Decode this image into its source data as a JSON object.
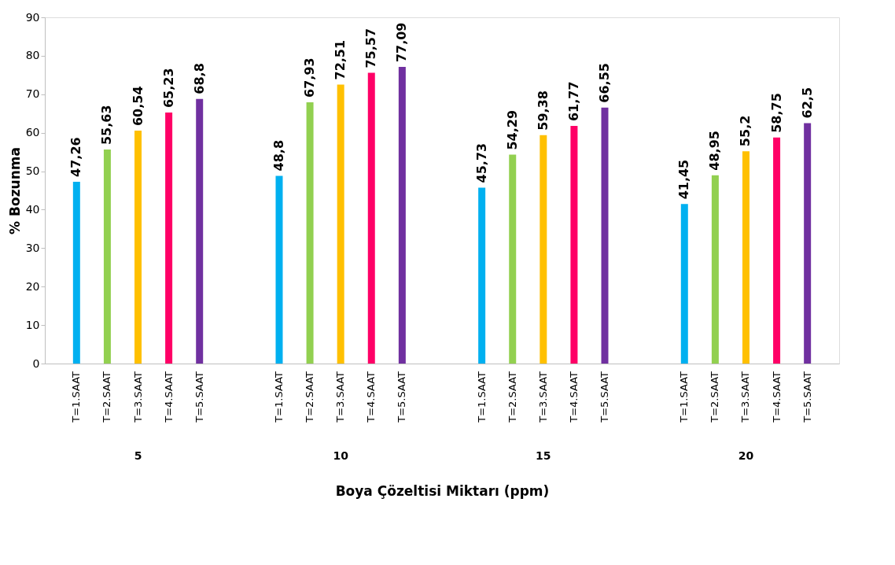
{
  "chart_data": {
    "type": "bar",
    "xlabel": "Boya Çözeltisi Miktarı (ppm)",
    "ylabel": "% Bozunma",
    "categories": [
      "5",
      "10",
      "15",
      "20"
    ],
    "series": [
      {
        "name": "T=1.SAAT",
        "color": "#00b0f0",
        "values": [
          47.26,
          48.8,
          45.73,
          41.45
        ],
        "value_labels": [
          "47,26",
          "48,8",
          "45,73",
          "41,45"
        ]
      },
      {
        "name": "T=2.SAAT",
        "color": "#92d050",
        "values": [
          55.63,
          67.93,
          54.29,
          48.95
        ],
        "value_labels": [
          "55,63",
          "67,93",
          "54,29",
          "48,95"
        ]
      },
      {
        "name": "T=3.SAAT",
        "color": "#ffc000",
        "values": [
          60.54,
          72.51,
          59.38,
          55.2
        ],
        "value_labels": [
          "60,54",
          "72,51",
          "59,38",
          "55,2"
        ]
      },
      {
        "name": "T=4.SAAT",
        "color": "#ff0066",
        "values": [
          65.23,
          75.57,
          61.77,
          58.75
        ],
        "value_labels": [
          "65,23",
          "75,57",
          "61,77",
          "58,75"
        ]
      },
      {
        "name": "T=5.SAAT",
        "color": "#7030a0",
        "values": [
          68.8,
          77.09,
          66.55,
          62.5
        ],
        "value_labels": [
          "68,8",
          "77,09",
          "66,55",
          "62,5"
        ]
      }
    ],
    "ylim": [
      0,
      90
    ],
    "yticks": [
      0,
      10,
      20,
      30,
      40,
      50,
      60,
      70,
      80,
      90
    ],
    "grid": false,
    "legend": false
  }
}
